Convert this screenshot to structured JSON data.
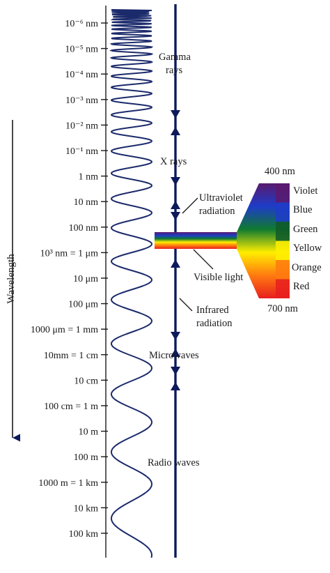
{
  "axis": {
    "title": "Wavelength",
    "ticks": [
      {
        "label": "10⁻⁶ nm"
      },
      {
        "label": "10⁻⁵ nm"
      },
      {
        "label": "10⁻⁴ nm"
      },
      {
        "label": "10⁻³ nm"
      },
      {
        "label": "10⁻² nm"
      },
      {
        "label": "10⁻¹ nm"
      },
      {
        "label": "1 nm"
      },
      {
        "label": "10 nm"
      },
      {
        "label": "100 nm"
      },
      {
        "label": "10³ nm = 1 μm"
      },
      {
        "label": "10 μm"
      },
      {
        "label": "100 μm"
      },
      {
        "label": "1000 μm = 1 mm"
      },
      {
        "label": "10mm = 1 cm"
      },
      {
        "label": "10 cm"
      },
      {
        "label": "100 cm = 1 m"
      },
      {
        "label": "10 m"
      },
      {
        "label": "100 m"
      },
      {
        "label": "1000 m = 1 km"
      },
      {
        "label": "10 km"
      },
      {
        "label": "100 km"
      }
    ]
  },
  "bands": {
    "gamma": {
      "line1": "Gamma",
      "line2": "rays"
    },
    "xray": {
      "label": "X rays"
    },
    "uv": {
      "line1": "Ultraviolet",
      "line2": "radiation"
    },
    "visible": {
      "label": "Visible light"
    },
    "ir": {
      "line1": "Infrared",
      "line2": "radiation"
    },
    "micro": {
      "label": "Microwaves"
    },
    "radio": {
      "label": "Radio waves"
    }
  },
  "spectrum": {
    "top_label": "400 nm",
    "bottom_label": "700 nm",
    "colors": [
      {
        "name": "Violet",
        "hex": "#5a1a6e"
      },
      {
        "name": "Blue",
        "hex": "#1e3cc8"
      },
      {
        "name": "Green",
        "hex": "#0f5a28"
      },
      {
        "name": "Yellow",
        "hex": "#ffee00"
      },
      {
        "name": "Orange",
        "hex": "#ff7a10"
      },
      {
        "name": "Red",
        "hex": "#e81e1e"
      }
    ]
  },
  "colors": {
    "wave": "#1b2a6b",
    "axis_line": "#0d1a5c",
    "text": "#1a1a1a"
  }
}
